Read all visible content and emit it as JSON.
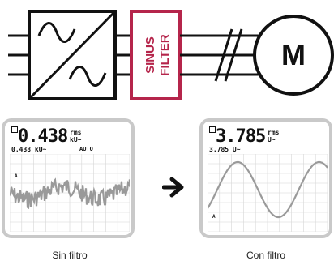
{
  "filter_label": [
    "SINUS",
    "FILTER"
  ],
  "motor_label": "M",
  "left_panel": {
    "value": "0.438",
    "unit_top": "rms",
    "unit_bottom": "kU~",
    "sub_value": "0.438 kU~",
    "mode": "AUTO",
    "marker": "A",
    "caption": "Sin filtro"
  },
  "right_panel": {
    "value": "3.785",
    "unit_top": "rms",
    "unit_bottom": "U~",
    "sub_value": "3.785 U~",
    "marker": "A",
    "caption": "Con filtro"
  },
  "colors": {
    "filter_accent": "#b5254b",
    "line": "#111111",
    "screen_border": "#c9c9c9",
    "waveform": "#9a9a9a",
    "grid": "#d6d6d6"
  }
}
